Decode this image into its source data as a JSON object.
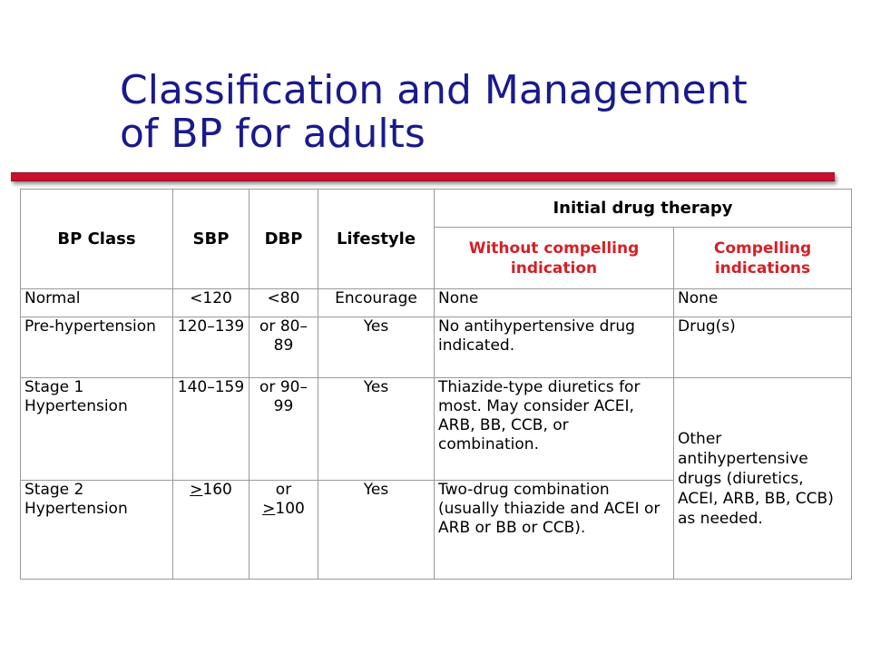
{
  "title": {
    "line1": "Classification and Management",
    "line2": "of BP for adults"
  },
  "colors": {
    "title": "#1a1a8c",
    "divider": "#c8102e",
    "subheader": "#d61f26"
  },
  "table": {
    "headers": {
      "bp_class": "BP Class",
      "sbp": "SBP",
      "dbp": "DBP",
      "lifestyle": "Lifestyle",
      "initial_drug_therapy": "Initial drug therapy",
      "without_compelling": "Without compelling indication",
      "compelling": "Compelling indications"
    },
    "rows": [
      {
        "bp_class": "Normal",
        "sbp": "<120",
        "dbp": "<80",
        "lifestyle": "Encourage",
        "without_compelling": "None",
        "compelling": "None"
      },
      {
        "bp_class": "Pre-hypertension",
        "sbp": "120–139",
        "dbp": "or 80–89",
        "lifestyle": "Yes",
        "without_compelling": "No antihypertensive drug indicated.",
        "compelling": "Drug(s)"
      },
      {
        "bp_class": "Stage 1 Hypertension",
        "sbp": "140–159",
        "dbp": "or 90–99",
        "lifestyle": "Yes",
        "without_compelling": "Thiazide-type diuretics for most.  May consider ACEI, ARB, BB, CCB, or combination."
      },
      {
        "bp_class": "Stage 2 Hypertension",
        "sbp_symbol": ">",
        "sbp_value": "160",
        "dbp_prefix": "or",
        "dbp_symbol": ">",
        "dbp_value": "100",
        "lifestyle": "Yes",
        "without_compelling": "Two-drug combination (usually thiazide and ACEI or ARB or BB or CCB)."
      }
    ],
    "stage_compelling_merged": "Other antihypertensive drugs (diuretics, ACEI, ARB, BB, CCB) as needed."
  }
}
